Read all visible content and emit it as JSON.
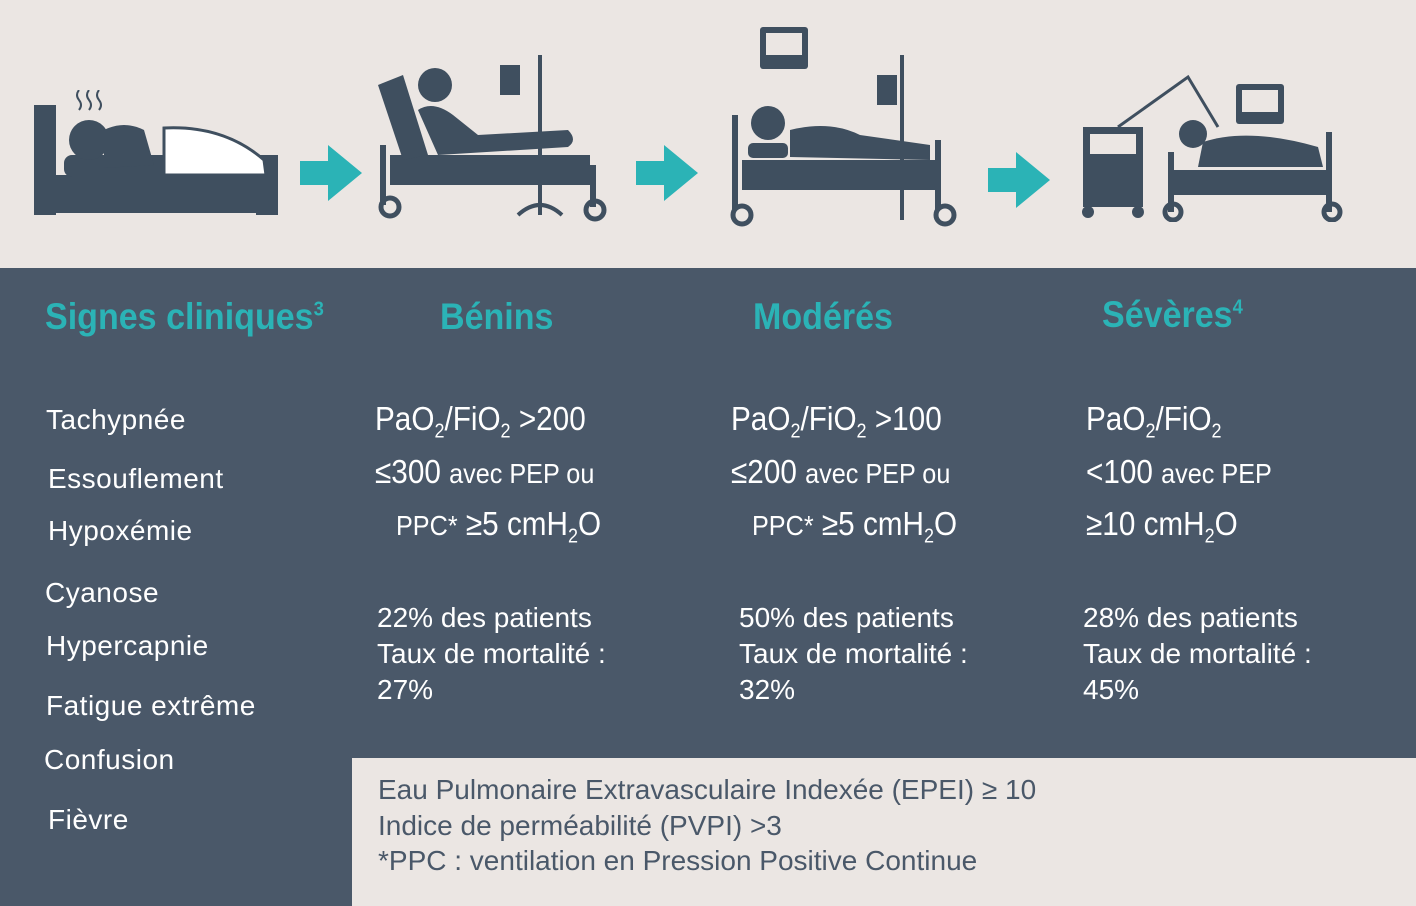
{
  "colors": {
    "background": "#ebe6e3",
    "panel": "#4a5869",
    "accent": "#2bb3b6",
    "icon": "#3f4f5f"
  },
  "stages": [
    {
      "icon": "bed-fever-patient-icon"
    },
    {
      "icon": "bed-iv-drip-patient-icon"
    },
    {
      "icon": "bed-monitor-iv-patient-icon"
    },
    {
      "icon": "bed-ventilator-patient-icon"
    }
  ],
  "headers": {
    "signs": "Signes cliniques",
    "signs_sup": "3",
    "mild": "Bénins",
    "moderate": "Modérés",
    "severe": "Sévères",
    "severe_sup": "4"
  },
  "signs": [
    "Tachypnée",
    "Essouflement",
    "Hypoxémie",
    "Cyanose",
    "Hypercapnie",
    "Fatigue extrême",
    "Confusion",
    "Fièvre"
  ],
  "criteria": {
    "ratio_pre": "PaO",
    "sub2": "2",
    "ratio_mid": "/FiO",
    "mild": {
      "l1_tail": ">200",
      "l2_num": "≤300",
      "l2_text": "avec PEP ou",
      "l3_pre": "PPC*",
      "l3_val": "≥5 cmH",
      "l3_end": "O"
    },
    "moderate": {
      "l1_tail": ">100",
      "l2_num": "≤200",
      "l2_text": "avec PEP ou",
      "l3_pre": "PPC*",
      "l3_val": "≥5 cmH",
      "l3_end": "O"
    },
    "severe": {
      "l2_num": "<100",
      "l2_text": "avec PEP",
      "l3_val": "≥10 cmH",
      "l3_end": "O"
    }
  },
  "stats": {
    "mild": {
      "patients": "22% des patients",
      "mortality_label": "Taux de mortalité :",
      "mortality": "27%"
    },
    "moderate": {
      "patients": "50% des patients",
      "mortality_label": "Taux de mortalité :",
      "mortality": "32%"
    },
    "severe": {
      "patients": "28% des patients",
      "mortality_label": "Taux de mortalité :",
      "mortality": "45%"
    }
  },
  "notes": [
    "Eau Pulmonaire Extravasculaire Indexée (EPEI) ≥ 10",
    "Indice de perméabilité (PVPI) >3",
    "*PPC : ventilation en Pression Positive Continue"
  ]
}
